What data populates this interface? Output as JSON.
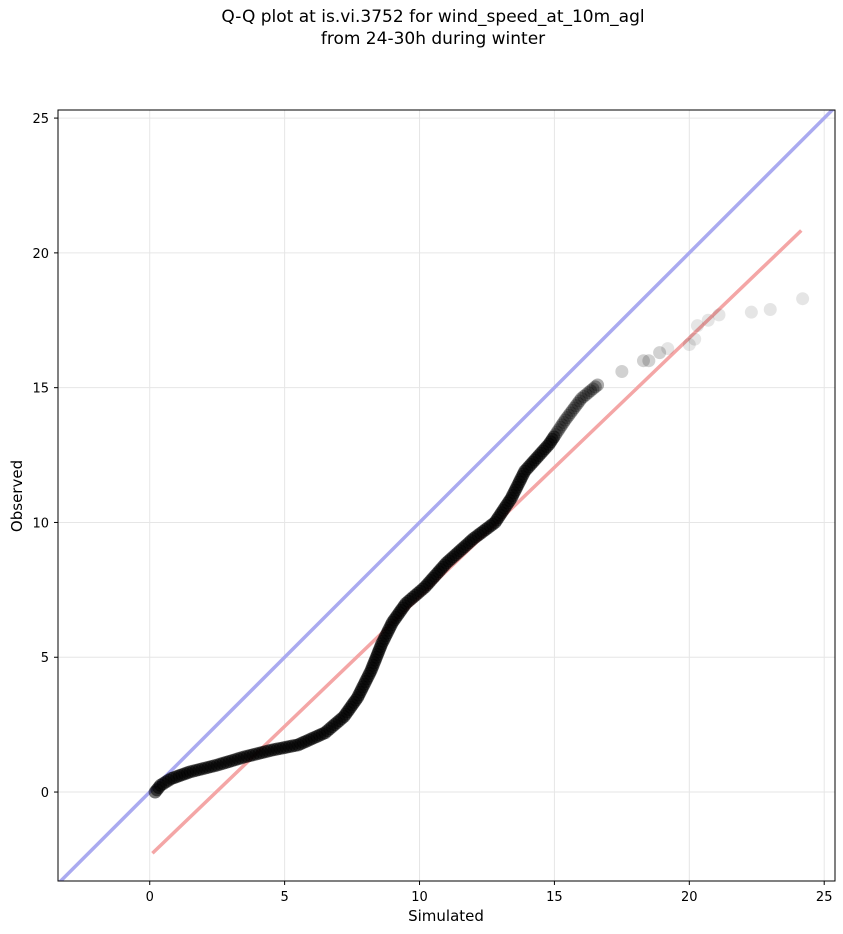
{
  "chart_data": {
    "type": "scatter",
    "title_line1": "Q-Q plot at is.vi.3752 for wind_speed_at_10m_agl",
    "title_line2": "from 24-30h during winter",
    "xlabel": "Simulated",
    "ylabel": "Observed",
    "xlim": [
      -3.4,
      25.4
    ],
    "ylim": [
      -3.3,
      25.3
    ],
    "xticks": [
      0,
      5,
      10,
      15,
      20,
      25
    ],
    "yticks": [
      0,
      5,
      10,
      15,
      20,
      25
    ],
    "grid": true,
    "colors": {
      "points": "#000000",
      "identity_line": "#aaaaf0",
      "fit_line": "#f4a6a6"
    },
    "identity_line": {
      "x": [
        -3.4,
        25.4
      ],
      "y": [
        -3.4,
        25.4
      ]
    },
    "fit_line": {
      "x": [
        0.1,
        24.15
      ],
      "y": [
        -2.27,
        20.83
      ]
    },
    "curve_points": [
      [
        0.2,
        0.0
      ],
      [
        0.4,
        0.25
      ],
      [
        0.8,
        0.5
      ],
      [
        1.5,
        0.75
      ],
      [
        2.5,
        1.0
      ],
      [
        3.5,
        1.3
      ],
      [
        4.5,
        1.55
      ],
      [
        5.5,
        1.75
      ],
      [
        6.5,
        2.2
      ],
      [
        7.2,
        2.8
      ],
      [
        7.7,
        3.5
      ],
      [
        8.2,
        4.5
      ],
      [
        8.6,
        5.5
      ],
      [
        9.0,
        6.3
      ],
      [
        9.5,
        7.0
      ],
      [
        10.2,
        7.6
      ],
      [
        11.0,
        8.5
      ],
      [
        12.0,
        9.4
      ],
      [
        12.8,
        10.0
      ],
      [
        13.4,
        10.9
      ],
      [
        13.9,
        11.9
      ],
      [
        14.8,
        12.9
      ],
      [
        15.4,
        13.8
      ],
      [
        16.0,
        14.6
      ],
      [
        16.6,
        15.1
      ],
      [
        17.5,
        15.6
      ],
      [
        18.3,
        16.0
      ],
      [
        18.5,
        16.0
      ],
      [
        18.9,
        16.3
      ],
      [
        19.2,
        16.45
      ],
      [
        20.0,
        16.6
      ],
      [
        20.2,
        16.8
      ],
      [
        20.3,
        17.3
      ],
      [
        20.7,
        17.5
      ],
      [
        21.1,
        17.7
      ],
      [
        22.3,
        17.8
      ],
      [
        23.0,
        17.9
      ],
      [
        24.2,
        18.3
      ]
    ]
  }
}
